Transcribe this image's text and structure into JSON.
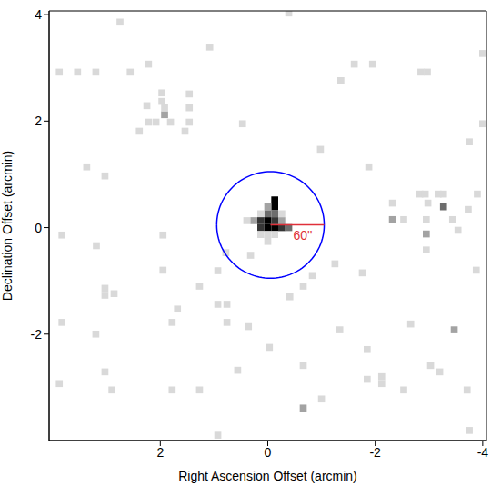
{
  "chart_data": {
    "type": "heatmap",
    "x_label": "Right Ascension Offset (arcmin)",
    "y_label": "Declination Offset (arcmin)",
    "xlim": [
      4.07,
      -4.07
    ],
    "ylim": [
      -4,
      4.07
    ],
    "xticks": [
      2,
      0,
      -2,
      -4
    ],
    "yticks": [
      -2,
      0,
      2,
      4
    ],
    "cell_size": 0.13,
    "cells": [
      [
        2.75,
        3.86,
        1
      ],
      [
        -0.39,
        4.03,
        1
      ],
      [
        3.88,
        2.92,
        1
      ],
      [
        3.54,
        2.92,
        1
      ],
      [
        3.2,
        2.92,
        1
      ],
      [
        2.56,
        2.92,
        1
      ],
      [
        2.22,
        3.07,
        1
      ],
      [
        1.08,
        3.39,
        1
      ],
      [
        -1.61,
        3.07,
        1
      ],
      [
        -1.95,
        3.07,
        1
      ],
      [
        -1.36,
        2.76,
        1
      ],
      [
        -2.85,
        2.92,
        1
      ],
      [
        -2.97,
        2.92,
        1
      ],
      [
        -4.0,
        3.27,
        1
      ],
      [
        2.25,
        2.29,
        1
      ],
      [
        1.97,
        2.37,
        1
      ],
      [
        1.92,
        2.12,
        2
      ],
      [
        2.08,
        1.98,
        1
      ],
      [
        2.22,
        1.98,
        1
      ],
      [
        1.81,
        1.98,
        1
      ],
      [
        1.46,
        1.98,
        1
      ],
      [
        1.46,
        2.25,
        1
      ],
      [
        1.46,
        2.51,
        1
      ],
      [
        2.39,
        1.81,
        1
      ],
      [
        1.54,
        1.81,
        1
      ],
      [
        1.97,
        2.53,
        1
      ],
      [
        1.92,
        2.25,
        1
      ],
      [
        0.47,
        1.95,
        1
      ],
      [
        -0.98,
        1.47,
        1
      ],
      [
        3.37,
        1.14,
        1
      ],
      [
        3.03,
        0.97,
        1
      ],
      [
        -1.88,
        1.14,
        1
      ],
      [
        -3.75,
        1.61,
        1
      ],
      [
        -4.0,
        1.95,
        1
      ],
      [
        3.83,
        -0.14,
        1
      ],
      [
        3.19,
        -0.34,
        1
      ],
      [
        1.95,
        -0.14,
        1
      ],
      [
        0.78,
        -0.47,
        1
      ],
      [
        0.32,
        -0.52,
        1
      ],
      [
        -2.32,
        0.46,
        1
      ],
      [
        -2.32,
        0.15,
        2
      ],
      [
        -2.53,
        0.15,
        1
      ],
      [
        -2.83,
        0.63,
        1
      ],
      [
        -2.93,
        0.63,
        1
      ],
      [
        -3.17,
        0.63,
        1
      ],
      [
        -3.27,
        0.63,
        1
      ],
      [
        -2.98,
        0.46,
        1
      ],
      [
        -3.27,
        0.39,
        3
      ],
      [
        -2.95,
        0.15,
        1
      ],
      [
        -2.95,
        -0.12,
        2
      ],
      [
        -3.44,
        0.15,
        1
      ],
      [
        -3.73,
        0.34,
        1
      ],
      [
        -3.9,
        0.63,
        1
      ],
      [
        -3.54,
        -0.05,
        1
      ],
      [
        -0.13,
        0.52,
        5
      ],
      [
        -0.13,
        0.39,
        5
      ],
      [
        0,
        0.39,
        2
      ],
      [
        0,
        0.26,
        3
      ],
      [
        -0.13,
        0.26,
        3
      ],
      [
        0.13,
        0.26,
        1
      ],
      [
        0.26,
        0.13,
        2
      ],
      [
        0.13,
        0.13,
        4
      ],
      [
        0,
        0.13,
        5
      ],
      [
        -0.13,
        0.13,
        4
      ],
      [
        -0.26,
        0.13,
        2
      ],
      [
        0.13,
        0,
        4
      ],
      [
        0,
        0,
        5
      ],
      [
        -0.13,
        0,
        5
      ],
      [
        -0.26,
        0,
        4
      ],
      [
        -0.39,
        0,
        3
      ],
      [
        0,
        -0.13,
        1
      ],
      [
        -0.13,
        -0.13,
        1
      ],
      [
        0.13,
        -0.13,
        1
      ],
      [
        0.39,
        0.13,
        1
      ],
      [
        -0.26,
        0.26,
        1
      ],
      [
        0,
        -0.26,
        1
      ],
      [
        3.03,
        -1.14,
        1
      ],
      [
        3.03,
        -1.27,
        1
      ],
      [
        2.86,
        -1.24,
        1
      ],
      [
        1.95,
        -0.8,
        1
      ],
      [
        0.93,
        -0.81,
        1
      ],
      [
        1.27,
        -1.1,
        1
      ],
      [
        0.93,
        -1.44,
        1
      ],
      [
        0.76,
        -1.44,
        1
      ],
      [
        1.68,
        -1.53,
        1
      ],
      [
        1.78,
        -1.78,
        1
      ],
      [
        0.76,
        -1.78,
        1
      ],
      [
        0.36,
        -1.86,
        1
      ],
      [
        -0.03,
        -2.25,
        1
      ],
      [
        -0.41,
        -1.3,
        1
      ],
      [
        -0.66,
        -1.1,
        1
      ],
      [
        -0.83,
        -0.9,
        1
      ],
      [
        -1.25,
        -0.68,
        1
      ],
      [
        -1.34,
        -1.92,
        1
      ],
      [
        -1.76,
        -0.85,
        1
      ],
      [
        -3.88,
        -0.8,
        1
      ],
      [
        3.83,
        -1.78,
        1
      ],
      [
        3.2,
        -2.0,
        1
      ],
      [
        3.88,
        -2.93,
        1
      ],
      [
        3.03,
        -2.71,
        1
      ],
      [
        2.9,
        -3.05,
        1
      ],
      [
        1.78,
        -3.05,
        1
      ],
      [
        1.27,
        -3.05,
        1
      ],
      [
        0.56,
        -2.68,
        1
      ],
      [
        -0.66,
        -2.59,
        1
      ],
      [
        -1.0,
        -3.22,
        1
      ],
      [
        -0.66,
        -3.39,
        2
      ],
      [
        0.93,
        -3.9,
        1
      ],
      [
        -1.85,
        -2.85,
        1
      ],
      [
        -2.12,
        -2.8,
        1
      ],
      [
        -2.12,
        -2.93,
        1
      ],
      [
        -2.53,
        -3.05,
        1
      ],
      [
        -1.85,
        -2.29,
        1
      ],
      [
        -3.03,
        -2.59,
        1
      ],
      [
        -3.2,
        -2.71,
        1
      ],
      [
        -3.71,
        -3.05,
        1
      ],
      [
        -3.47,
        -1.92,
        2
      ],
      [
        -3.75,
        -3.81,
        1
      ],
      [
        -2.66,
        -1.81,
        1
      ],
      [
        -2.95,
        -0.42,
        1
      ]
    ],
    "circle": {
      "center": [
        -0.05,
        0.05
      ],
      "radius": 1,
      "color": "#0000ff"
    },
    "annotation": {
      "text": "60''",
      "color": "#e0303a"
    }
  }
}
